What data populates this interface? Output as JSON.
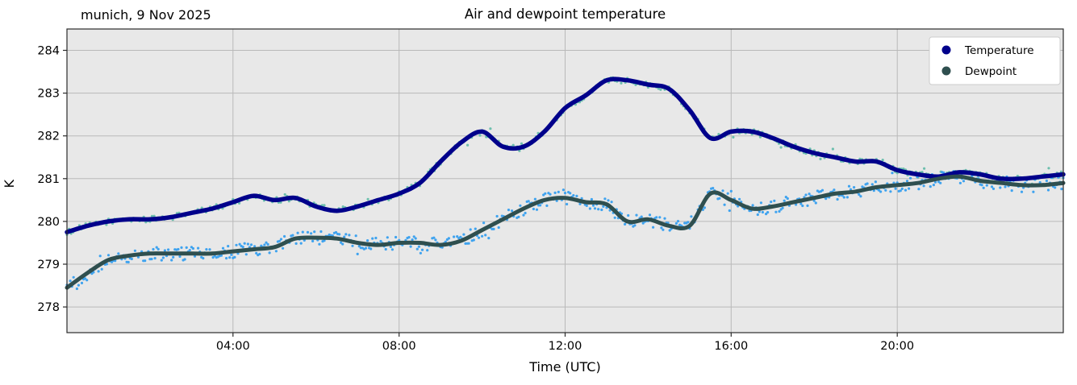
{
  "chart_data": {
    "type": "line",
    "title": "Air and dewpoint temperature",
    "subtitle_left": "munich, 9 Nov 2025",
    "xlabel": "Time (UTC)",
    "ylabel": "K",
    "xlim": [
      0,
      24
    ],
    "ylim": [
      277.4,
      284.5
    ],
    "grid": true,
    "plot_bg": "#e8e8e8",
    "grid_color": "#b9b9b9",
    "x_ticks": [
      {
        "value": 4,
        "label": "04:00"
      },
      {
        "value": 8,
        "label": "08:00"
      },
      {
        "value": 12,
        "label": "12:00"
      },
      {
        "value": 16,
        "label": "16:00"
      },
      {
        "value": 20,
        "label": "20:00"
      }
    ],
    "y_ticks": [
      278,
      279,
      280,
      281,
      282,
      283,
      284
    ],
    "x_hours": [
      0,
      0.5,
      1,
      1.5,
      2,
      2.5,
      3,
      3.5,
      4,
      4.5,
      5,
      5.5,
      6,
      6.5,
      7,
      7.5,
      8,
      8.5,
      9,
      9.5,
      10,
      10.5,
      11,
      11.5,
      12,
      12.5,
      13,
      13.5,
      14,
      14.5,
      15,
      15.5,
      16,
      16.5,
      17,
      17.5,
      18,
      18.5,
      19,
      19.5,
      20,
      20.5,
      21,
      21.5,
      22,
      22.5,
      23,
      23.5,
      24
    ],
    "series": [
      {
        "name": "Temperature",
        "color": "#00008b",
        "line_width": 5.5,
        "values": [
          279.75,
          279.9,
          280.0,
          280.05,
          280.05,
          280.1,
          280.2,
          280.3,
          280.45,
          280.6,
          280.5,
          280.55,
          280.35,
          280.25,
          280.35,
          280.5,
          280.65,
          280.9,
          281.4,
          281.85,
          282.1,
          281.75,
          281.75,
          282.1,
          282.65,
          282.95,
          283.3,
          283.3,
          283.2,
          283.1,
          282.6,
          281.95,
          282.1,
          282.1,
          281.95,
          281.75,
          281.6,
          281.5,
          281.4,
          281.4,
          281.2,
          281.1,
          281.05,
          281.15,
          281.1,
          281.0,
          281.0,
          281.05,
          281.1
        ]
      },
      {
        "name": "Dewpoint",
        "color": "#2f4f4f",
        "line_width": 5.0,
        "values": [
          278.45,
          278.8,
          279.1,
          279.2,
          279.25,
          279.25,
          279.25,
          279.25,
          279.3,
          279.35,
          279.4,
          279.6,
          279.62,
          279.6,
          279.5,
          279.45,
          279.5,
          279.5,
          279.45,
          279.55,
          279.8,
          280.05,
          280.3,
          280.5,
          280.55,
          280.45,
          280.4,
          280.0,
          280.05,
          279.9,
          279.9,
          280.65,
          280.5,
          280.3,
          280.35,
          280.45,
          280.55,
          280.65,
          280.7,
          280.8,
          280.85,
          280.9,
          281.0,
          281.05,
          280.95,
          280.9,
          280.85,
          280.85,
          280.9
        ]
      },
      {
        "name": "Temperature raw observations",
        "color": "#6dbfae",
        "derived_from": "Temperature",
        "noise_amplitude_k": 0.07
      },
      {
        "name": "Dewpoint raw observations",
        "color": "#3fa3ef",
        "derived_from": "Dewpoint",
        "noise_amplitude_k": 0.16
      }
    ],
    "legend": {
      "position": "upper right",
      "entries": [
        {
          "label": "Temperature",
          "color": "#00008b"
        },
        {
          "label": "Dewpoint",
          "color": "#2f4f4f"
        }
      ]
    }
  }
}
